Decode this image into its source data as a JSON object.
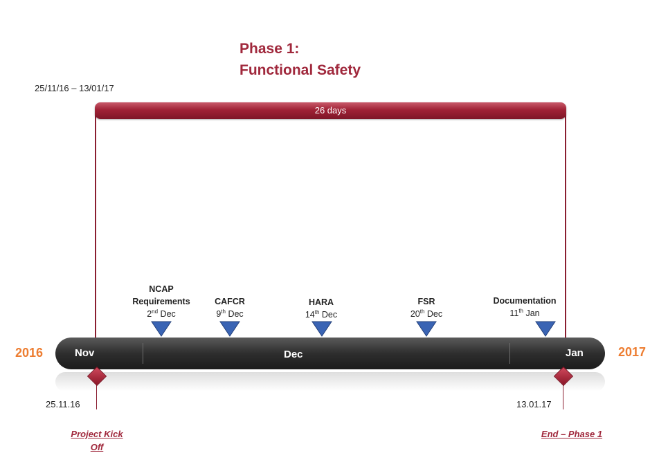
{
  "phase": {
    "title_line1": "Phase 1:",
    "title_line2": "Functional Safety",
    "date_range": "25/11/16 – 13/01/17",
    "duration": "26 days"
  },
  "years": {
    "start": "2016",
    "end": "2017"
  },
  "months": [
    "Nov",
    "Dec",
    "Jan"
  ],
  "milestones": [
    {
      "title_line1": "NCAP",
      "title_line2": "Requirements",
      "day": "2",
      "suffix": "nd",
      "month": "Dec"
    },
    {
      "title_line1": "CAFCR",
      "title_line2": "",
      "day": "9",
      "suffix": "th",
      "month": "Dec"
    },
    {
      "title_line1": "HARA",
      "title_line2": "",
      "day": "14",
      "suffix": "th",
      "month": "Dec"
    },
    {
      "title_line1": "FSR",
      "title_line2": "",
      "day": "20",
      "suffix": "th",
      "month": "Dec"
    },
    {
      "title_line1": "Documentation",
      "title_line2": "",
      "day": "11",
      "suffix": "th",
      "month": "Jan"
    }
  ],
  "endpoints": {
    "start": {
      "date": "25.11.16",
      "label_line1": "Project Kick",
      "label_line2": "Off"
    },
    "end": {
      "date": "13.01.17",
      "label_line1": "End – Phase 1"
    }
  },
  "colors": {
    "phase_accent": "#a0283c",
    "year_accent": "#ed7d31",
    "milestone_marker": "#3a64b4",
    "timeline_bar": "#2e2e2e"
  }
}
